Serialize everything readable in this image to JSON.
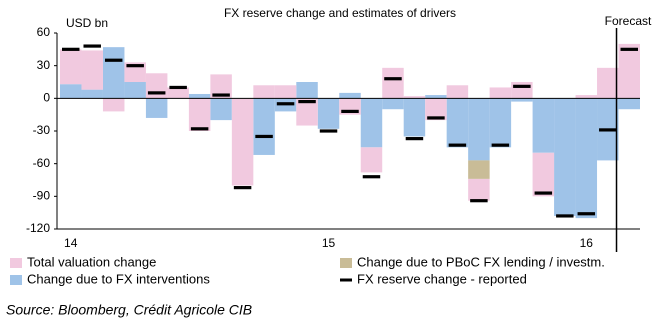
{
  "chart_data": {
    "type": "stacked_bar",
    "title": "FX reserve change  and estimates of drivers",
    "y_label": "USD bn",
    "forecast_label": "Forecast",
    "source": "Source: Bloomberg, Crédit Agricole CIB",
    "categories": [
      "14",
      null,
      null,
      null,
      null,
      null,
      null,
      null,
      null,
      null,
      null,
      null,
      "15",
      null,
      null,
      null,
      null,
      null,
      null,
      null,
      null,
      null,
      null,
      null,
      "16",
      null,
      null
    ],
    "ylim": [
      -120,
      60
    ],
    "yticks": [
      60,
      30,
      0,
      -30,
      -60,
      -90,
      -120
    ],
    "series": [
      {
        "name": "Change due to FX interventions",
        "color": "#9fc3e8",
        "values": [
          13,
          8,
          47,
          15,
          -18,
          0,
          4,
          -20,
          0,
          -52,
          -12,
          15,
          -28,
          5,
          -45,
          -10,
          -35,
          3,
          -45,
          -57,
          -45,
          -3,
          -50,
          -108,
          -110,
          -57,
          -10
        ]
      },
      {
        "name": "Change due to PBoC FX lending / investm.",
        "color": "#c9bc97",
        "values": [
          null,
          null,
          null,
          null,
          null,
          null,
          null,
          null,
          null,
          null,
          null,
          null,
          null,
          null,
          null,
          null,
          null,
          null,
          null,
          -17,
          null,
          null,
          null,
          null,
          null,
          null,
          null
        ]
      },
      {
        "name": "Total valuation change",
        "color": "#f1c9df",
        "values": [
          32,
          36,
          -12,
          18,
          23,
          10,
          -30,
          22,
          -80,
          12,
          12,
          -25,
          0,
          -15,
          -23,
          28,
          2,
          -20,
          12,
          -20,
          10,
          15,
          -40,
          0,
          3,
          28,
          50
        ]
      },
      {
        "name": "FX reserve change - reported",
        "color": "#000000",
        "type": "marker",
        "values": [
          45,
          48,
          35,
          30,
          5,
          10,
          -28,
          3,
          -82,
          -35,
          -5,
          -3,
          -30,
          -12,
          -72,
          18,
          -37,
          -18,
          -43,
          -94,
          -43,
          11,
          -87,
          -108,
          -106,
          -29,
          45
        ]
      }
    ],
    "legend_order": [
      2,
      1,
      0,
      3
    ]
  }
}
